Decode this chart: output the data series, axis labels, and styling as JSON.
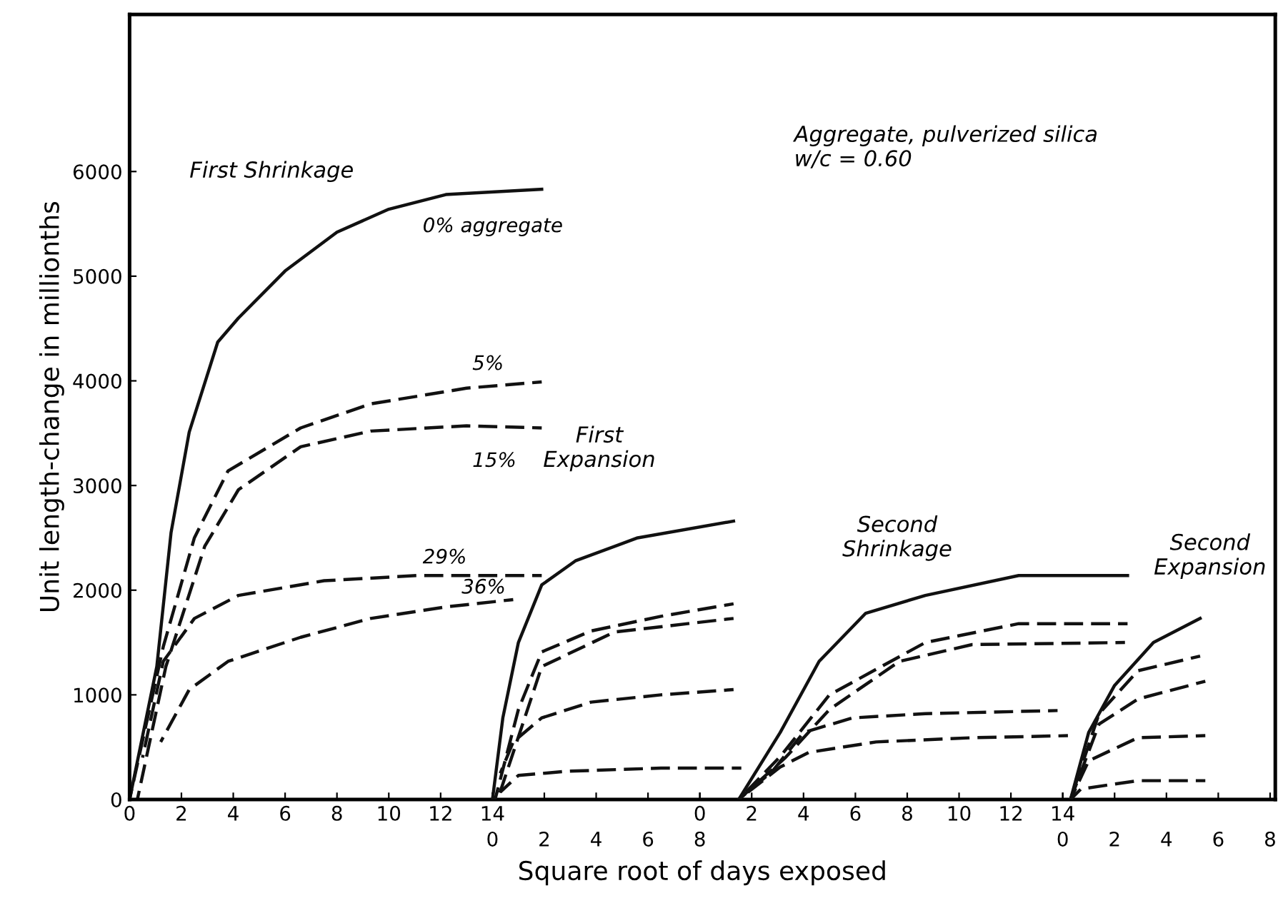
{
  "chart_data": [
    {
      "type": "line",
      "xlabel": "Square root of days exposed",
      "ylabel": "Unit length-change in millionths",
      "xlim": [
        0,
        44.2
      ],
      "ylim": [
        0,
        7500
      ],
      "xticks": [
        0,
        2,
        4,
        6,
        8,
        10,
        12,
        14
      ],
      "yticks": [
        0,
        1000,
        2000,
        3000,
        4000,
        5000,
        6000
      ],
      "grid": false,
      "legend": false,
      "marker": "none",
      "annotations": [
        "First Shrinkage",
        "Aggregate, pulverized silica\nw/c = 0.60"
      ],
      "series": [
        {
          "name": "0% aggregate",
          "color": "#111111",
          "line_style": "solid",
          "x": [
            0,
            1.05,
            1.6,
            2.3,
            3.4,
            4.2,
            6.0,
            8.0,
            10,
            12.2,
            15.9
          ],
          "values": [
            0,
            1270,
            2550,
            3510,
            4370,
            4600,
            5050,
            5420,
            5640,
            5780,
            5830
          ]
        },
        {
          "name": "5%",
          "color": "#111111",
          "line_style": "dashed",
          "x": [
            0,
            1.3,
            2.5,
            3.8,
            6.6,
            9.3,
            13,
            15.9
          ],
          "values": [
            0,
            1460,
            2500,
            3140,
            3550,
            3780,
            3930,
            3990
          ]
        },
        {
          "name": "15%",
          "color": "#111111",
          "line_style": "dashed",
          "x": [
            0.3,
            1.4,
            2.9,
            4.2,
            6.6,
            9.3,
            13,
            15.9
          ],
          "values": [
            0,
            1270,
            2420,
            2960,
            3370,
            3520,
            3570,
            3550
          ]
        },
        {
          "name": "29%",
          "color": "#111111",
          "line_style": "dashed",
          "x": [
            0.5,
            1.3,
            2.5,
            4.2,
            7.5,
            11.1,
            15.9
          ],
          "values": [
            400,
            1320,
            1730,
            1950,
            2090,
            2140,
            2140
          ]
        },
        {
          "name": "36%",
          "color": "#111111",
          "line_style": "dashed",
          "x": [
            1.2,
            2.3,
            3.8,
            6.6,
            9.3,
            12.2,
            14.8
          ],
          "values": [
            550,
            1050,
            1320,
            1550,
            1730,
            1840,
            1910
          ]
        }
      ]
    },
    {
      "type": "line",
      "xlim": [
        -14,
        30.2
      ],
      "ylim": [
        0,
        7500
      ],
      "xticks": [
        0,
        2,
        4,
        6,
        8
      ],
      "tick_labels": "x",
      "grid": false,
      "legend": false,
      "marker": "none",
      "annotations": [
        "First\nExpansion"
      ],
      "series": [
        {
          "color": "#111111",
          "line_style": "solid",
          "x": [
            0,
            0.4,
            1,
            1.9,
            3.2,
            5.6,
            9.3
          ],
          "values": [
            0,
            780,
            1500,
            2050,
            2280,
            2500,
            2660
          ]
        },
        {
          "color": "#111111",
          "line_style": "dashed",
          "x": [
            0.1,
            1,
            1.9,
            3.8,
            6.5,
            9.3
          ],
          "values": [
            0,
            860,
            1410,
            1610,
            1750,
            1870
          ]
        },
        {
          "color": "#111111",
          "line_style": "dashed",
          "x": [
            0.2,
            1.9,
            4.7,
            9.3
          ],
          "values": [
            0,
            1270,
            1600,
            1730
          ]
        },
        {
          "color": "#111111",
          "line_style": "dashed",
          "x": [
            0.3,
            0.8,
            1.9,
            3.8,
            6.5,
            9.3
          ],
          "values": [
            250,
            550,
            780,
            930,
            1000,
            1050
          ]
        },
        {
          "color": "#111111",
          "line_style": "dashed",
          "x": [
            0.3,
            1,
            2.9,
            6.5,
            9.6
          ],
          "values": [
            70,
            230,
            270,
            300,
            300
          ]
        }
      ]
    },
    {
      "type": "line",
      "xlim": [
        -22,
        22.2
      ],
      "ylim": [
        0,
        7500
      ],
      "xticks": [
        0,
        2,
        4,
        6,
        8,
        10,
        12,
        14
      ],
      "tick_labels": "x",
      "grid": false,
      "legend": false,
      "marker": "none",
      "annotations": [
        "Second\nShrinkage"
      ],
      "series": [
        {
          "color": "#111111",
          "line_style": "solid",
          "x": [
            1.5,
            3.1,
            4.6,
            6.4,
            8.7,
            12.3,
            16.5
          ],
          "values": [
            0,
            640,
            1320,
            1780,
            1950,
            2140,
            2140
          ]
        },
        {
          "color": "#111111",
          "line_style": "dashed",
          "x": [
            1.5,
            3.1,
            5,
            8.7,
            12.3,
            16.5
          ],
          "values": [
            0,
            410,
            1000,
            1500,
            1680,
            1680
          ]
        },
        {
          "color": "#111111",
          "line_style": "dashed",
          "x": [
            1.5,
            3.3,
            5,
            7.7,
            10.5,
            16.4
          ],
          "values": [
            0,
            400,
            860,
            1320,
            1480,
            1500
          ]
        },
        {
          "color": "#111111",
          "line_style": "dashed",
          "x": [
            1.5,
            2.8,
            4,
            5.9,
            8.7,
            13.8
          ],
          "values": [
            0,
            270,
            640,
            780,
            820,
            850
          ]
        },
        {
          "color": "#111111",
          "line_style": "dashed",
          "x": [
            1.5,
            3.1,
            4.2,
            6.8,
            10.5,
            14.2
          ],
          "values": [
            0,
            310,
            450,
            550,
            590,
            610
          ]
        }
      ]
    },
    {
      "type": "line",
      "xlim": [
        -36,
        8.2
      ],
      "ylim": [
        0,
        7500
      ],
      "xticks": [
        0,
        2,
        4,
        6,
        8
      ],
      "tick_labels": "x",
      "grid": false,
      "legend": false,
      "marker": "none",
      "annotations": [
        "Second\nExpansion"
      ],
      "series": [
        {
          "color": "#111111",
          "line_style": "solid",
          "x": [
            0.3,
            1,
            2,
            3.5,
            5.3
          ],
          "values": [
            0,
            640,
            1090,
            1500,
            1730
          ]
        },
        {
          "color": "#111111",
          "line_style": "dashed",
          "x": [
            0.3,
            1.4,
            2.9,
            5.3
          ],
          "values": [
            0,
            820,
            1230,
            1370
          ]
        },
        {
          "color": "#111111",
          "line_style": "dashed",
          "x": [
            0.3,
            1.4,
            2.9,
            5.5
          ],
          "values": [
            0,
            720,
            960,
            1130
          ]
        },
        {
          "color": "#111111",
          "line_style": "dashed",
          "x": [
            0.3,
            1,
            2.9,
            5.5
          ],
          "values": [
            0,
            370,
            590,
            610
          ]
        },
        {
          "color": "#111111",
          "line_style": "dashed",
          "x": [
            0.3,
            0.7,
            2.9,
            5.5
          ],
          "values": [
            0,
            100,
            180,
            180
          ]
        }
      ]
    }
  ]
}
